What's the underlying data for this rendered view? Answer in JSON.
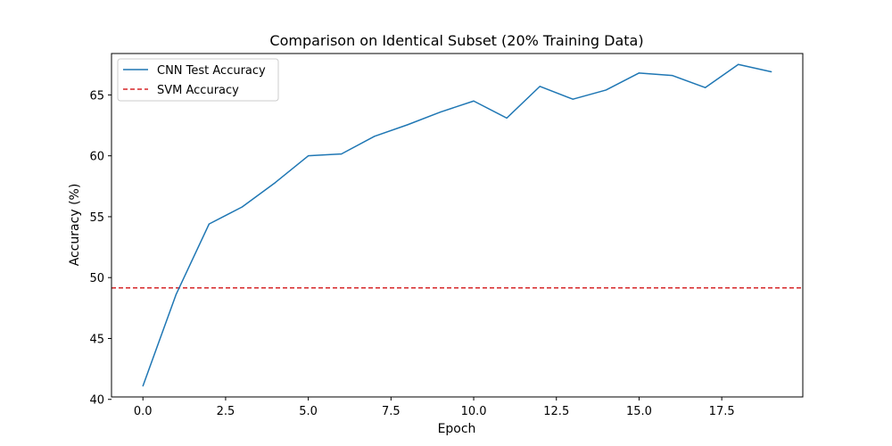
{
  "chart_data": {
    "type": "line",
    "title": "Comparison on Identical Subset (20% Training Data)",
    "xlabel": "Epoch",
    "ylabel": "Accuracy (%)",
    "xlim": [
      -0.95,
      19.95
    ],
    "ylim": [
      40.2,
      68.4
    ],
    "xticks": [
      0,
      2.5,
      5,
      7.5,
      10,
      12.5,
      15,
      17.5
    ],
    "xtick_labels": [
      "0.0",
      "2.5",
      "5.0",
      "7.5",
      "10.0",
      "12.5",
      "15.0",
      "17.5"
    ],
    "yticks": [
      40,
      45,
      50,
      55,
      60,
      65
    ],
    "ytick_labels": [
      "40",
      "45",
      "50",
      "55",
      "60",
      "65"
    ],
    "grid": false,
    "legend_position": "top-left",
    "series": [
      {
        "name": "CNN Test Accuracy",
        "color": "#1f77b4",
        "style": "solid",
        "x": [
          0,
          1,
          2,
          3,
          4,
          5,
          6,
          7,
          8,
          9,
          10,
          11,
          12,
          13,
          14,
          15,
          16,
          17,
          18,
          19
        ],
        "values": [
          41.1,
          48.6,
          54.4,
          55.8,
          57.8,
          60.0,
          60.15,
          61.6,
          62.55,
          63.6,
          64.5,
          63.1,
          65.7,
          64.65,
          65.4,
          66.8,
          66.6,
          65.6,
          67.5,
          66.9
        ]
      }
    ],
    "reference_lines": [
      {
        "name": "SVM Accuracy",
        "color": "#d62728",
        "style": "dashed",
        "orientation": "horizontal",
        "value": 49.15
      }
    ]
  }
}
